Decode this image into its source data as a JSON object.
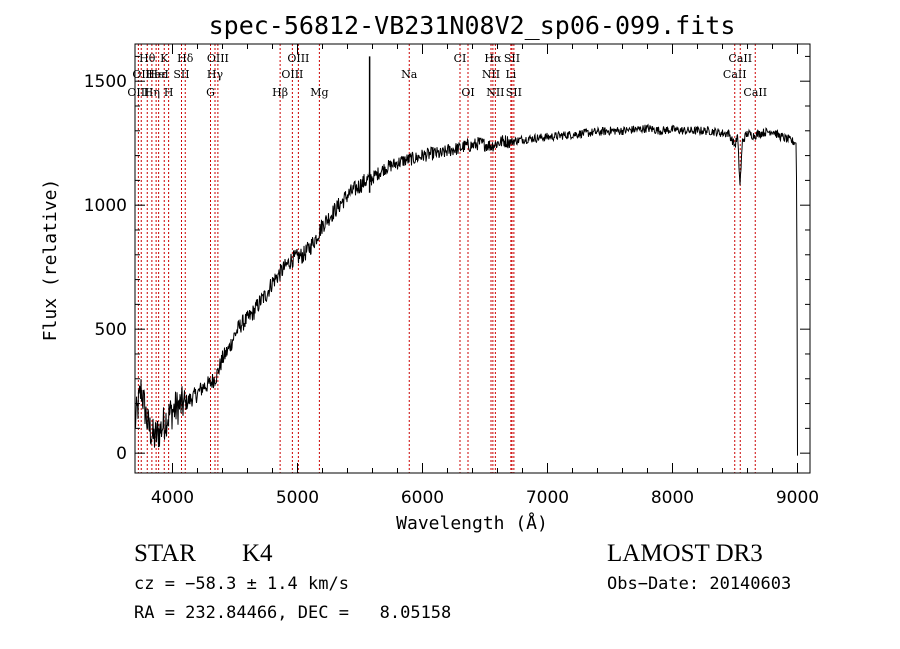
{
  "chart_data": {
    "type": "line",
    "title": "spec-56812-VB231N08V2_sp06-099.fits",
    "xlabel": "Wavelength (Å)",
    "ylabel": "Flux (relative)",
    "xlim": [
      3700,
      9100
    ],
    "ylim": [
      -80,
      1650
    ],
    "xticks": [
      4000,
      5000,
      6000,
      7000,
      8000,
      9000
    ],
    "yticks": [
      0,
      500,
      1000,
      1500
    ],
    "grid": false,
    "series": [
      {
        "name": "flux",
        "x": [
          3700,
          3750,
          3800,
          3850,
          3900,
          3950,
          4000,
          4050,
          4100,
          4150,
          4200,
          4250,
          4300,
          4350,
          4400,
          4450,
          4500,
          4550,
          4600,
          4650,
          4700,
          4750,
          4800,
          4850,
          4900,
          4950,
          5000,
          5050,
          5100,
          5150,
          5200,
          5250,
          5300,
          5350,
          5400,
          5450,
          5500,
          5550,
          5600,
          5650,
          5700,
          5750,
          5800,
          5850,
          5900,
          5950,
          6000,
          6050,
          6100,
          6150,
          6200,
          6250,
          6300,
          6350,
          6400,
          6450,
          6500,
          6550,
          6600,
          6650,
          6700,
          6750,
          6800,
          6900,
          7000,
          7100,
          7200,
          7300,
          7400,
          7500,
          7600,
          7700,
          7800,
          7900,
          8000,
          8100,
          8200,
          8300,
          8400,
          8450,
          8500,
          8520,
          8540,
          8560,
          8600,
          8650,
          8700,
          8750,
          8800,
          8850,
          8900,
          8950,
          8990,
          8995,
          9000
        ],
        "y": [
          120,
          260,
          120,
          60,
          90,
          140,
          170,
          190,
          200,
          220,
          240,
          270,
          280,
          310,
          380,
          420,
          480,
          520,
          540,
          570,
          610,
          640,
          690,
          720,
          750,
          780,
          790,
          800,
          830,
          870,
          920,
          950,
          980,
          1010,
          1040,
          1060,
          1080,
          1100,
          1110,
          1130,
          1150,
          1160,
          1170,
          1180,
          1185,
          1190,
          1200,
          1205,
          1210,
          1205,
          1220,
          1225,
          1230,
          1240,
          1240,
          1250,
          1245,
          1240,
          1250,
          1260,
          1255,
          1260,
          1265,
          1270,
          1275,
          1280,
          1285,
          1290,
          1295,
          1300,
          1300,
          1305,
          1310,
          1300,
          1305,
          1300,
          1300,
          1300,
          1290,
          1290,
          1240,
          1280,
          1080,
          1260,
          1290,
          1280,
          1290,
          1295,
          1300,
          1280,
          1270,
          1260,
          1250,
          900,
          -10
        ]
      }
    ],
    "spikes": [
      {
        "x": 5577,
        "y": 1600
      }
    ],
    "lines": [
      {
        "x": 3727,
        "labels": [
          "OIII"
        ],
        "row": 3
      },
      {
        "x": 3750,
        "labels": [
          "OII"
        ],
        "row": 2
      },
      {
        "x": 3798,
        "labels": [
          "Hθ"
        ],
        "row": 1
      },
      {
        "x": 3835,
        "labels": [
          "Hη"
        ],
        "row": 3
      },
      {
        "x": 3869,
        "labels": [
          "Heε"
        ],
        "row": 2
      },
      {
        "x": 3889,
        "labels": [
          "HeI"
        ],
        "row": 2
      },
      {
        "x": 3934,
        "labels": [
          "K"
        ],
        "row": 1
      },
      {
        "x": 3969,
        "labels": [
          "H"
        ],
        "row": 3
      },
      {
        "x": 4072,
        "labels": [
          "SII"
        ],
        "row": 2
      },
      {
        "x": 4102,
        "labels": [
          "Hδ"
        ],
        "row": 1
      },
      {
        "x": 4304,
        "labels": [
          "G"
        ],
        "row": 3
      },
      {
        "x": 4340,
        "labels": [
          "Hγ"
        ],
        "row": 2
      },
      {
        "x": 4363,
        "labels": [
          "OIII"
        ],
        "row": 1
      },
      {
        "x": 4861,
        "labels": [
          "Hβ"
        ],
        "row": 3
      },
      {
        "x": 4959,
        "labels": [
          "OIII"
        ],
        "row": 2
      },
      {
        "x": 5007,
        "labels": [
          "OIII"
        ],
        "row": 1
      },
      {
        "x": 5175,
        "labels": [
          "Mg"
        ],
        "row": 3
      },
      {
        "x": 5894,
        "labels": [
          "Na"
        ],
        "row": 2
      },
      {
        "x": 6300,
        "labels": [
          "CI"
        ],
        "row": 1
      },
      {
        "x": 6364,
        "labels": [
          "OI"
        ],
        "row": 3
      },
      {
        "x": 6548,
        "labels": [
          "NII"
        ],
        "row": 2
      },
      {
        "x": 6563,
        "labels": [
          "Hα"
        ],
        "row": 1
      },
      {
        "x": 6583,
        "labels": [
          "NII"
        ],
        "row": 3
      },
      {
        "x": 6707,
        "labels": [
          "Li"
        ],
        "row": 2
      },
      {
        "x": 6716,
        "labels": [
          "SII"
        ],
        "row": 1
      },
      {
        "x": 6731,
        "labels": [
          "SII"
        ],
        "row": 3
      },
      {
        "x": 8498,
        "labels": [
          "CaII"
        ],
        "row": 2
      },
      {
        "x": 8542,
        "labels": [
          "CaII"
        ],
        "row": 1
      },
      {
        "x": 8662,
        "labels": [
          "CaII"
        ],
        "row": 3
      }
    ]
  },
  "info": {
    "class_label": "STAR",
    "subclass": "K4",
    "survey": "LAMOST DR3",
    "cz": "cz = −58.3 ± 1.4 km/s",
    "obs_date": "Obs−Date: 20140603",
    "coords": "RA = 232.84466, DEC =   8.05158"
  },
  "colors": {
    "line": "#000000",
    "markers": "#cc0000",
    "background": "#ffffff"
  }
}
